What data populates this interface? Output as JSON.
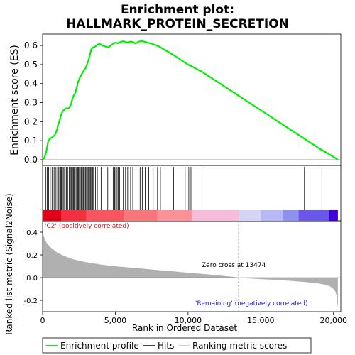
{
  "chart_data": {
    "type": "line",
    "title_line1": "Enrichment plot:",
    "title_line2": "HALLMARK_PROTEIN_SECRETION",
    "es_ylabel": "Enrichment score (ES)",
    "metric_ylabel": "Ranked list metric (Signal2Noise)",
    "xlabel": "Rank in Ordered Dataset",
    "xlim": [
      0,
      20500
    ],
    "es_ylim": [
      -0.03,
      0.66
    ],
    "metric_ylim": [
      -0.3,
      0.5
    ],
    "x_ticks": [
      0,
      5000,
      10000,
      15000,
      20000
    ],
    "x_tick_labels": [
      "0",
      "5,000",
      "10,000",
      "15,000",
      "20,000"
    ],
    "es_ticks": [
      0.0,
      0.1,
      0.2,
      0.3,
      0.4,
      0.5,
      0.6
    ],
    "es_tick_labels": [
      "0.0",
      "0.1",
      "0.2",
      "0.3",
      "0.4",
      "0.5",
      "0.6"
    ],
    "metric_ticks": [
      -0.2,
      0.0,
      0.2,
      0.4
    ],
    "metric_tick_labels": [
      "-0.2",
      "0.0",
      "0.2",
      "0.4"
    ],
    "enrichment_profile": {
      "x": [
        0,
        120,
        250,
        320,
        400,
        500,
        700,
        850,
        1000,
        1050,
        1150,
        1250,
        1350,
        1450,
        1600,
        1800,
        1950,
        2050,
        2150,
        2250,
        2350,
        2450,
        2550,
        2700,
        2850,
        2950,
        3050,
        3150,
        3250,
        3350,
        3450,
        3550,
        3700,
        3900,
        4100,
        4300,
        4500,
        4700,
        4850,
        5000,
        5200,
        5400,
        5600,
        5800,
        6000,
        6200,
        6400,
        6600,
        6800,
        7000,
        7200,
        7500,
        8000,
        9000,
        10000,
        11000,
        12000,
        13000,
        14000,
        15000,
        16000,
        17000,
        18000,
        19000,
        20000,
        20300
      ],
      "y": [
        0.0,
        0.01,
        0.04,
        0.07,
        0.1,
        0.11,
        0.12,
        0.13,
        0.16,
        0.18,
        0.2,
        0.23,
        0.25,
        0.26,
        0.27,
        0.27,
        0.29,
        0.32,
        0.34,
        0.35,
        0.38,
        0.41,
        0.43,
        0.45,
        0.47,
        0.48,
        0.5,
        0.52,
        0.55,
        0.58,
        0.59,
        0.59,
        0.6,
        0.61,
        0.6,
        0.595,
        0.59,
        0.6,
        0.61,
        0.615,
        0.612,
        0.62,
        0.622,
        0.615,
        0.62,
        0.618,
        0.61,
        0.62,
        0.623,
        0.62,
        0.615,
        0.61,
        0.595,
        0.55,
        0.5,
        0.46,
        0.41,
        0.36,
        0.31,
        0.26,
        0.21,
        0.16,
        0.11,
        0.06,
        0.015,
        0.0
      ]
    },
    "hits": [
      210,
      310,
      360,
      420,
      530,
      650,
      790,
      920,
      1030,
      1110,
      1180,
      1240,
      1290,
      1340,
      1410,
      1470,
      1550,
      1640,
      1720,
      1830,
      1900,
      1960,
      2010,
      2060,
      2120,
      2180,
      2230,
      2300,
      2360,
      2420,
      2470,
      2530,
      2590,
      2660,
      2740,
      2810,
      2880,
      2950,
      3020,
      3080,
      3140,
      3200,
      3260,
      3310,
      3370,
      3420,
      3470,
      3530,
      3640,
      3760,
      3880,
      4020,
      4480,
      4850,
      4950,
      5030,
      5120,
      5190,
      5300,
      5550,
      5700,
      5850,
      6050,
      6200,
      6420,
      6560,
      6700,
      6850,
      7050,
      7300,
      7600,
      7900,
      8100,
      9000,
      9800,
      10050,
      10200,
      11100,
      18000,
      19200
    ],
    "ranked_metric": {
      "x": [
        0,
        20,
        60,
        150,
        300,
        600,
        1000,
        1500,
        2000,
        3000,
        4000,
        5000,
        6000,
        7000,
        8000,
        9000,
        10000,
        11000,
        12000,
        13000,
        13474,
        14000,
        15000,
        16000,
        17000,
        18000,
        19000,
        19500,
        19800,
        20000,
        20150,
        20250,
        20300
      ],
      "y": [
        0.48,
        0.4,
        0.37,
        0.34,
        0.3,
        0.26,
        0.22,
        0.19,
        0.165,
        0.135,
        0.115,
        0.1,
        0.088,
        0.077,
        0.066,
        0.055,
        0.043,
        0.032,
        0.021,
        0.008,
        0.0,
        -0.006,
        -0.013,
        -0.02,
        -0.028,
        -0.038,
        -0.052,
        -0.065,
        -0.08,
        -0.1,
        -0.13,
        -0.2,
        -0.27
      ]
    },
    "zero_cross": 13474,
    "annotation_zero_cross": "Zero cross at 13474",
    "annotation_positive": "'C2' (positively correlated)",
    "annotation_negative": "'Remaining' (negatively correlated)",
    "legend": {
      "placement": "bottom",
      "entries": [
        "Enrichment profile",
        "Hits",
        "Ranking metric scores"
      ]
    },
    "colors": {
      "profile": "#00ee00",
      "hits": "#000000",
      "metric_fill": "#b0b0b0",
      "zero_line": "#a0a0a0",
      "positive_text": "#d02020",
      "negative_text": "#2020c0",
      "zero_cross_text": "#000000"
    },
    "heatmap_segments": [
      {
        "start": 0,
        "end": 1300,
        "color": "#e10018"
      },
      {
        "start": 1300,
        "end": 3000,
        "color": "#f4303f"
      },
      {
        "start": 3000,
        "end": 5600,
        "color": "#f85561"
      },
      {
        "start": 5600,
        "end": 7900,
        "color": "#fa757c"
      },
      {
        "start": 7900,
        "end": 10300,
        "color": "#fb9096"
      },
      {
        "start": 10300,
        "end": 13474,
        "color": "#f7bcd9"
      },
      {
        "start": 13474,
        "end": 15000,
        "color": "#d4d4f8"
      },
      {
        "start": 15000,
        "end": 16500,
        "color": "#b8b8f6"
      },
      {
        "start": 16500,
        "end": 17600,
        "color": "#8f8ff0"
      },
      {
        "start": 17600,
        "end": 19700,
        "color": "#6a56ea"
      },
      {
        "start": 19700,
        "end": 20300,
        "color": "#4000d8"
      }
    ]
  }
}
